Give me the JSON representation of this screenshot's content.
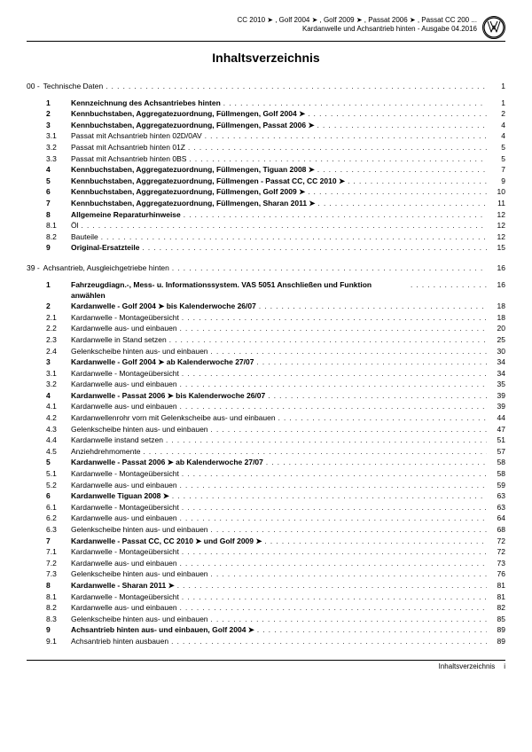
{
  "header": {
    "line1": "CC 2010 ➤ , Golf 2004 ➤ , Golf 2009 ➤ , Passat 2006 ➤ , Passat CC 200 ...",
    "line2": "Kardanwelle und Achsantrieb hinten - Ausgabe 04.2016"
  },
  "title": "Inhaltsverzeichnis",
  "sections": [
    {
      "heading_num": "00 -",
      "heading_label": "Technische Daten",
      "heading_page": "1",
      "items": [
        {
          "n": "1",
          "label": "Kennzeichnung des Achsantriebes hinten",
          "bold": true,
          "p": "1"
        },
        {
          "n": "2",
          "label": "Kennbuchstaben, Aggregatezuordnung, Füllmengen, Golf 2004 ➤",
          "bold": true,
          "p": "2"
        },
        {
          "n": "3",
          "label": "Kennbuchstaben, Aggregatezuordnung, Füllmengen, Passat 2006 ➤",
          "bold": true,
          "p": "4"
        },
        {
          "n": "3.1",
          "label": "Passat mit Achsantrieb hinten 02D/0AV",
          "bold": false,
          "p": "4"
        },
        {
          "n": "3.2",
          "label": "Passat mit Achsantrieb hinten 01Z",
          "bold": false,
          "p": "5"
        },
        {
          "n": "3.3",
          "label": "Passat mit Achsantrieb hinten 0BS",
          "bold": false,
          "p": "5"
        },
        {
          "n": "4",
          "label": "Kennbuchstaben, Aggregatezuordnung, Füllmengen, Tiguan 2008 ➤",
          "bold": true,
          "p": "7"
        },
        {
          "n": "5",
          "label": "Kennbuchstaben, Aggregatezuordnung, Füllmengen - Passat CC, CC 2010 ➤",
          "bold": true,
          "p": "9"
        },
        {
          "n": "6",
          "label": "Kennbuchstaben, Aggregatezuordnung, Füllmengen, Golf 2009 ➤",
          "bold": true,
          "p": "10"
        },
        {
          "n": "7",
          "label": "Kennbuchstaben, Aggregatezuordnung, Füllmengen, Sharan 2011 ➤",
          "bold": true,
          "p": "11"
        },
        {
          "n": "8",
          "label": "Allgemeine Reparaturhinweise",
          "bold": true,
          "p": "12"
        },
        {
          "n": "8.1",
          "label": "Öl",
          "bold": false,
          "p": "12"
        },
        {
          "n": "8.2",
          "label": "Bauteile",
          "bold": false,
          "p": "12"
        },
        {
          "n": "9",
          "label": "Original-Ersatzteile",
          "bold": true,
          "p": "15"
        }
      ]
    },
    {
      "heading_num": "39 -",
      "heading_label": "Achsantrieb, Ausgleichgetriebe hinten",
      "heading_page": "16",
      "items": [
        {
          "n": "1",
          "label": "Fahrzeugdiagn.-, Mess- u. Informationssystem. VAS 5051 Anschließen und Funktion anwählen",
          "bold": true,
          "p": "16",
          "multi": true
        },
        {
          "n": "2",
          "label": "Kardanwelle - Golf 2004 ➤ bis Kalenderwoche 26/07",
          "bold": true,
          "p": "18"
        },
        {
          "n": "2.1",
          "label": "Kardanwelle - Montageübersicht",
          "bold": false,
          "p": "18"
        },
        {
          "n": "2.2",
          "label": "Kardanwelle aus- und einbauen",
          "bold": false,
          "p": "20"
        },
        {
          "n": "2.3",
          "label": "Kardanwelle in Stand setzen",
          "bold": false,
          "p": "25"
        },
        {
          "n": "2.4",
          "label": "Gelenkscheibe hinten aus- und einbauen",
          "bold": false,
          "p": "30"
        },
        {
          "n": "3",
          "label": "Kardanwelle - Golf 2004 ➤ ab Kalenderwoche 27/07",
          "bold": true,
          "p": "34"
        },
        {
          "n": "3.1",
          "label": "Kardanwelle - Montageübersicht",
          "bold": false,
          "p": "34"
        },
        {
          "n": "3.2",
          "label": "Kardanwelle aus- und einbauen",
          "bold": false,
          "p": "35"
        },
        {
          "n": "4",
          "label": "Kardanwelle - Passat 2006 ➤ bis Kalenderwoche 26/07",
          "bold": true,
          "p": "39"
        },
        {
          "n": "4.1",
          "label": "Kardanwelle aus- und einbauen",
          "bold": false,
          "p": "39"
        },
        {
          "n": "4.2",
          "label": "Kardanwellenrohr vorn mit Gelenkscheibe aus- und einbauen",
          "bold": false,
          "p": "44"
        },
        {
          "n": "4.3",
          "label": "Gelenkscheibe hinten aus- und einbauen",
          "bold": false,
          "p": "47"
        },
        {
          "n": "4.4",
          "label": "Kardanwelle instand setzen",
          "bold": false,
          "p": "51"
        },
        {
          "n": "4.5",
          "label": "Anziehdrehmomente",
          "bold": false,
          "p": "57"
        },
        {
          "n": "5",
          "label": "Kardanwelle - Passat 2006 ➤ ab Kalenderwoche 27/07",
          "bold": true,
          "p": "58"
        },
        {
          "n": "5.1",
          "label": "Kardanwelle - Montageübersicht",
          "bold": false,
          "p": "58"
        },
        {
          "n": "5.2",
          "label": "Kardanwelle aus- und einbauen",
          "bold": false,
          "p": "59"
        },
        {
          "n": "6",
          "label": "Kardanwelle Tiguan 2008 ➤",
          "bold": true,
          "p": "63"
        },
        {
          "n": "6.1",
          "label": "Kardanwelle - Montageübersicht",
          "bold": false,
          "p": "63"
        },
        {
          "n": "6.2",
          "label": "Kardanwelle aus- und einbauen",
          "bold": false,
          "p": "64"
        },
        {
          "n": "6.3",
          "label": "Gelenkscheibe hinten aus- und einbauen",
          "bold": false,
          "p": "68"
        },
        {
          "n": "7",
          "label": "Kardanwelle - Passat CC, CC 2010 ➤ und Golf 2009 ➤",
          "bold": true,
          "p": "72"
        },
        {
          "n": "7.1",
          "label": "Kardanwelle - Montageübersicht",
          "bold": false,
          "p": "72"
        },
        {
          "n": "7.2",
          "label": "Kardanwelle aus- und einbauen",
          "bold": false,
          "p": "73"
        },
        {
          "n": "7.3",
          "label": "Gelenkscheibe hinten aus- und einbauen",
          "bold": false,
          "p": "76"
        },
        {
          "n": "8",
          "label": "Kardanwelle - Sharan 2011 ➤",
          "bold": true,
          "p": "81"
        },
        {
          "n": "8.1",
          "label": "Kardanwelle - Montageübersicht",
          "bold": false,
          "p": "81"
        },
        {
          "n": "8.2",
          "label": "Kardanwelle aus- und einbauen",
          "bold": false,
          "p": "82"
        },
        {
          "n": "8.3",
          "label": "Gelenkscheibe hinten aus- und einbauen",
          "bold": false,
          "p": "85"
        },
        {
          "n": "9",
          "label": "Achsantrieb hinten aus- und einbauen, Golf 2004 ➤",
          "bold": true,
          "p": "89"
        },
        {
          "n": "9.1",
          "label": "Achsantrieb hinten ausbauen",
          "bold": false,
          "p": "89"
        }
      ]
    }
  ],
  "footer": {
    "label": "Inhaltsverzeichnis",
    "page": "i"
  }
}
